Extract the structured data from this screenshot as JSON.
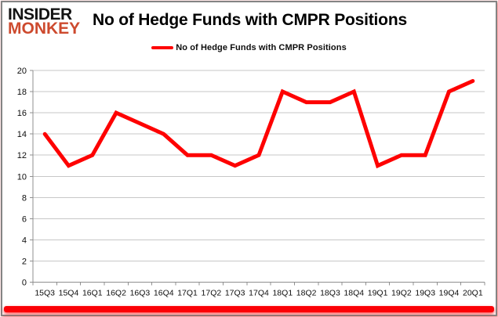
{
  "header": {
    "logo_line1": "INSIDER",
    "logo_line2": "MONKEY",
    "logo_color1": "#131313",
    "logo_color2": "#cd4a2e",
    "title": "No of Hedge Funds with CMPR Positions"
  },
  "legend": {
    "label": "No of Hedge Funds with CMPR Positions",
    "swatch_color": "#fe0000",
    "position": "top-center"
  },
  "colors": {
    "line": "#fe0000",
    "gridline": "#c7c7c7",
    "axis": "#8f8f8f",
    "tick_text": "#0d0d0d",
    "frame_border": "#848484",
    "bottom_bar": "#fb0006"
  },
  "chart_data": {
    "type": "line",
    "title": "No of Hedge Funds with CMPR Positions",
    "categories": [
      "15Q3",
      "15Q4",
      "16Q1",
      "16Q2",
      "16Q3",
      "16Q4",
      "17Q1",
      "17Q2",
      "17Q3",
      "17Q4",
      "18Q1",
      "18Q2",
      "18Q3",
      "18Q4",
      "19Q1",
      "19Q2",
      "19Q3",
      "19Q4",
      "20Q1"
    ],
    "series": [
      {
        "name": "No of Hedge Funds with CMPR Positions",
        "color": "#fe0000",
        "values": [
          14,
          11,
          12,
          16,
          15,
          14,
          12,
          12,
          11,
          12,
          18,
          17,
          17,
          18,
          11,
          12,
          12,
          18,
          19
        ]
      }
    ],
    "xlabel": "",
    "ylabel": "",
    "ylim": [
      0,
      20
    ],
    "ytick_step": 2,
    "grid": "horizontal",
    "legend_position": "top-center"
  }
}
